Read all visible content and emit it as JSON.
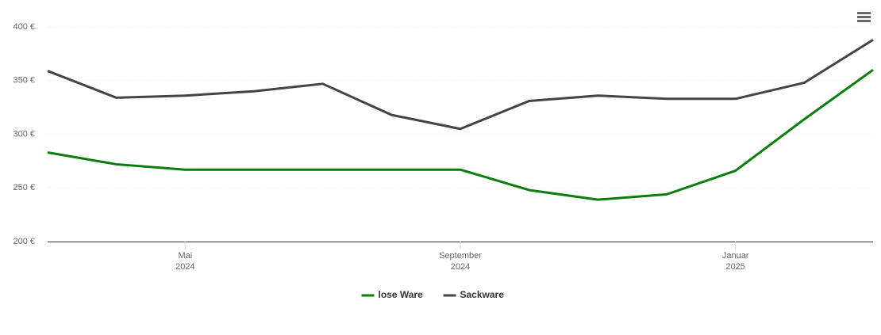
{
  "chart_data": {
    "type": "line",
    "x": [
      "2024-03",
      "2024-04",
      "2024-05",
      "2024-06",
      "2024-07",
      "2024-08",
      "2024-09",
      "2024-10",
      "2024-11",
      "2024-12",
      "2025-01",
      "2025-02",
      "2025-03"
    ],
    "series": [
      {
        "name": "lose Ware",
        "color": "#0a7d0a",
        "values": [
          283,
          272,
          267,
          267,
          267,
          267,
          267,
          248,
          239,
          244,
          266,
          314,
          360
        ]
      },
      {
        "name": "Sackware",
        "color": "#434348",
        "values": [
          359,
          334,
          336,
          340,
          347,
          318,
          305,
          331,
          336,
          333,
          333,
          348,
          388
        ]
      }
    ],
    "xlim": [
      "2024-03",
      "2025-03"
    ],
    "xticks": [
      {
        "value": "2024-05",
        "label": [
          "Mai",
          "2024"
        ]
      },
      {
        "value": "2024-09",
        "label": [
          "September",
          "2024"
        ]
      },
      {
        "value": "2025-01",
        "label": [
          "Januar",
          "2025"
        ]
      }
    ],
    "ylim": [
      200,
      400
    ],
    "yticks": [
      {
        "value": 200,
        "label": "200 €"
      },
      {
        "value": 250,
        "label": "250 €"
      },
      {
        "value": 300,
        "label": "300 €"
      },
      {
        "value": 350,
        "label": "350 €"
      },
      {
        "value": 400,
        "label": "400 €"
      }
    ],
    "grid": true,
    "legend": "bottom"
  }
}
